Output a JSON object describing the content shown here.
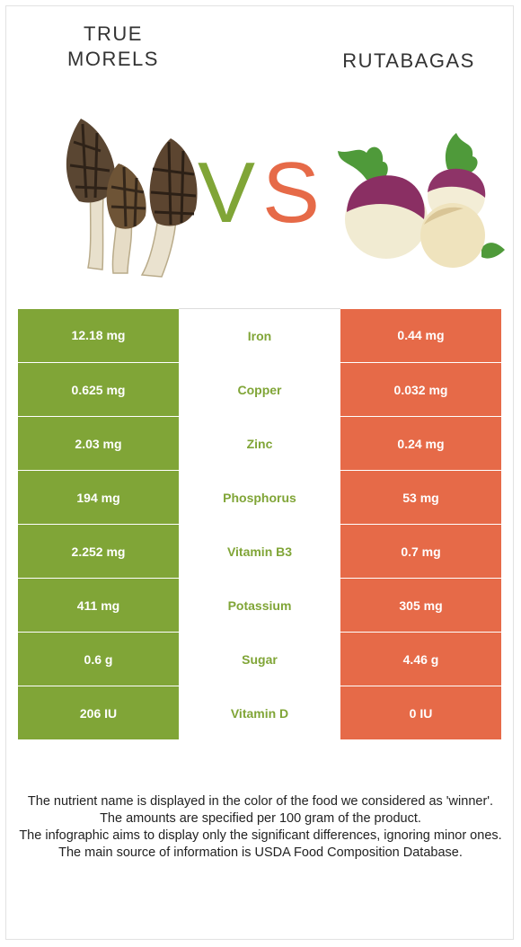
{
  "left_food": {
    "name": "TRUE\nMORELS",
    "color": "#80a537"
  },
  "right_food": {
    "name": "RUTABAGAS",
    "color": "#e66a48"
  },
  "vs": {
    "v": "V",
    "s": "S"
  },
  "rows": [
    {
      "nutrient": "Iron",
      "left": "12.18 mg",
      "right": "0.44 mg",
      "winner": "left"
    },
    {
      "nutrient": "Copper",
      "left": "0.625 mg",
      "right": "0.032 mg",
      "winner": "left"
    },
    {
      "nutrient": "Zinc",
      "left": "2.03 mg",
      "right": "0.24 mg",
      "winner": "left"
    },
    {
      "nutrient": "Phosphorus",
      "left": "194 mg",
      "right": "53 mg",
      "winner": "left"
    },
    {
      "nutrient": "Vitamin B3",
      "left": "2.252 mg",
      "right": "0.7 mg",
      "winner": "left"
    },
    {
      "nutrient": "Potassium",
      "left": "411 mg",
      "right": "305 mg",
      "winner": "left"
    },
    {
      "nutrient": "Sugar",
      "left": "0.6 g",
      "right": "4.46 g",
      "winner": "left"
    },
    {
      "nutrient": "Vitamin D",
      "left": "206 IU",
      "right": "0 IU",
      "winner": "left"
    }
  ],
  "footer": [
    "The nutrient name is displayed in the color of the food we considered as 'winner'.",
    "The amounts are specified per 100 gram of the product.",
    "The infographic aims to display only the significant differences, ignoring minor ones.",
    "The main source of information is USDA Food Composition Database."
  ]
}
